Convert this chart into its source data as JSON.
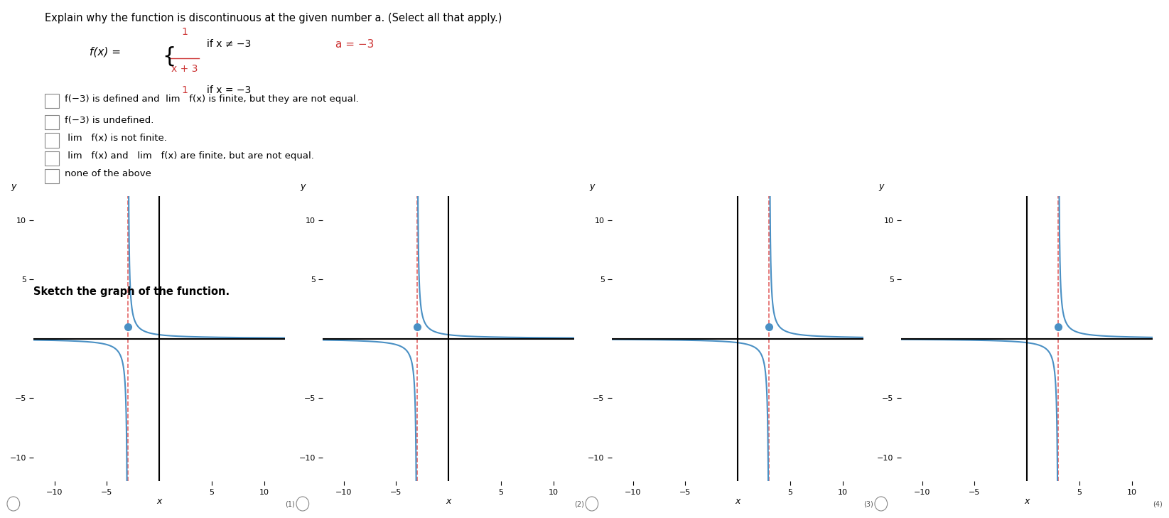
{
  "title_text": "Explain why the function is discontinuous at the given number a. (Select all that apply.)",
  "function_text": "f(x) = {1/(x+3) if x ≠ -3, 1 if x = -3}",
  "a_value": -3,
  "options": [
    "f(−3) is defined and lim f(x) is finite, but they are not equal.",
    "f(−3) is undefined.",
    "lim f(x) is not finite.",
    "lim f(x) and lim f(x) are finite, but are not equal.",
    "none of the above"
  ],
  "graphs": [
    {
      "asymptote": -3,
      "dot_x": -3,
      "dot_y": 1,
      "has_dot": true
    },
    {
      "asymptote": -3,
      "dot_x": -3,
      "dot_y": 1,
      "has_dot": true
    },
    {
      "asymptote": 3,
      "dot_x": 3,
      "dot_y": 1,
      "has_dot": true
    },
    {
      "asymptote": 3,
      "dot_x": 3,
      "dot_y": 1,
      "has_dot": true
    }
  ],
  "xlim": [
    -12,
    12
  ],
  "ylim": [
    -12,
    12
  ],
  "xticks": [
    -10,
    -5,
    5,
    10
  ],
  "yticks": [
    -10,
    -5,
    5,
    10
  ],
  "curve_color": "#4a90c4",
  "asymptote_color": "#e05555",
  "dot_color": "#4a90c4",
  "axis_color": "#000000",
  "background_color": "#ffffff",
  "text_color": "#000000",
  "formula_color": "#cc3333"
}
